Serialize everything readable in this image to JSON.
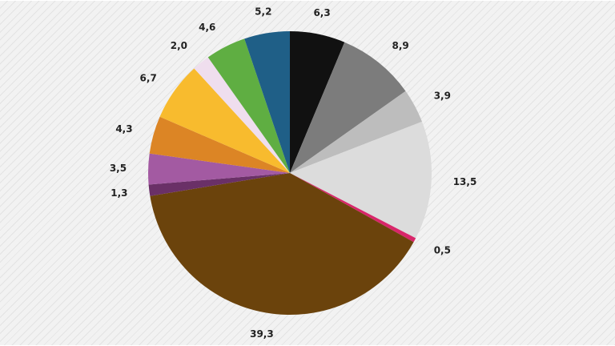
{
  "chart_data": {
    "type": "pie",
    "start": "12 o'clock",
    "direction": "clockwise",
    "slices": [
      {
        "value": 6.3,
        "label": "6,3",
        "color": "#111111"
      },
      {
        "value": 8.9,
        "label": "8,9",
        "color": "#7c7c7c"
      },
      {
        "value": 3.9,
        "label": "3,9",
        "color": "#bdbdbd"
      },
      {
        "value": 13.5,
        "label": "13,5",
        "color": "#dcdcdc"
      },
      {
        "value": 0.5,
        "label": "0,5",
        "color": "#d8266a"
      },
      {
        "value": 39.3,
        "label": "39,3",
        "color": "#6b430c"
      },
      {
        "value": 1.3,
        "label": "1,3",
        "color": "#6a3067"
      },
      {
        "value": 3.5,
        "label": "3,5",
        "color": "#a35aa2"
      },
      {
        "value": 4.3,
        "label": "4,3",
        "color": "#dc8525"
      },
      {
        "value": 6.7,
        "label": "6,7",
        "color": "#f8bb2e"
      },
      {
        "value": 2.0,
        "label": "2,0",
        "color": "#efdeee"
      },
      {
        "value": 4.6,
        "label": "4,6",
        "color": "#5fae42"
      },
      {
        "value": 5.2,
        "label": "5,2",
        "color": "#1f5f87"
      }
    ],
    "legend": "none",
    "background_color": "#f2f2f2"
  }
}
